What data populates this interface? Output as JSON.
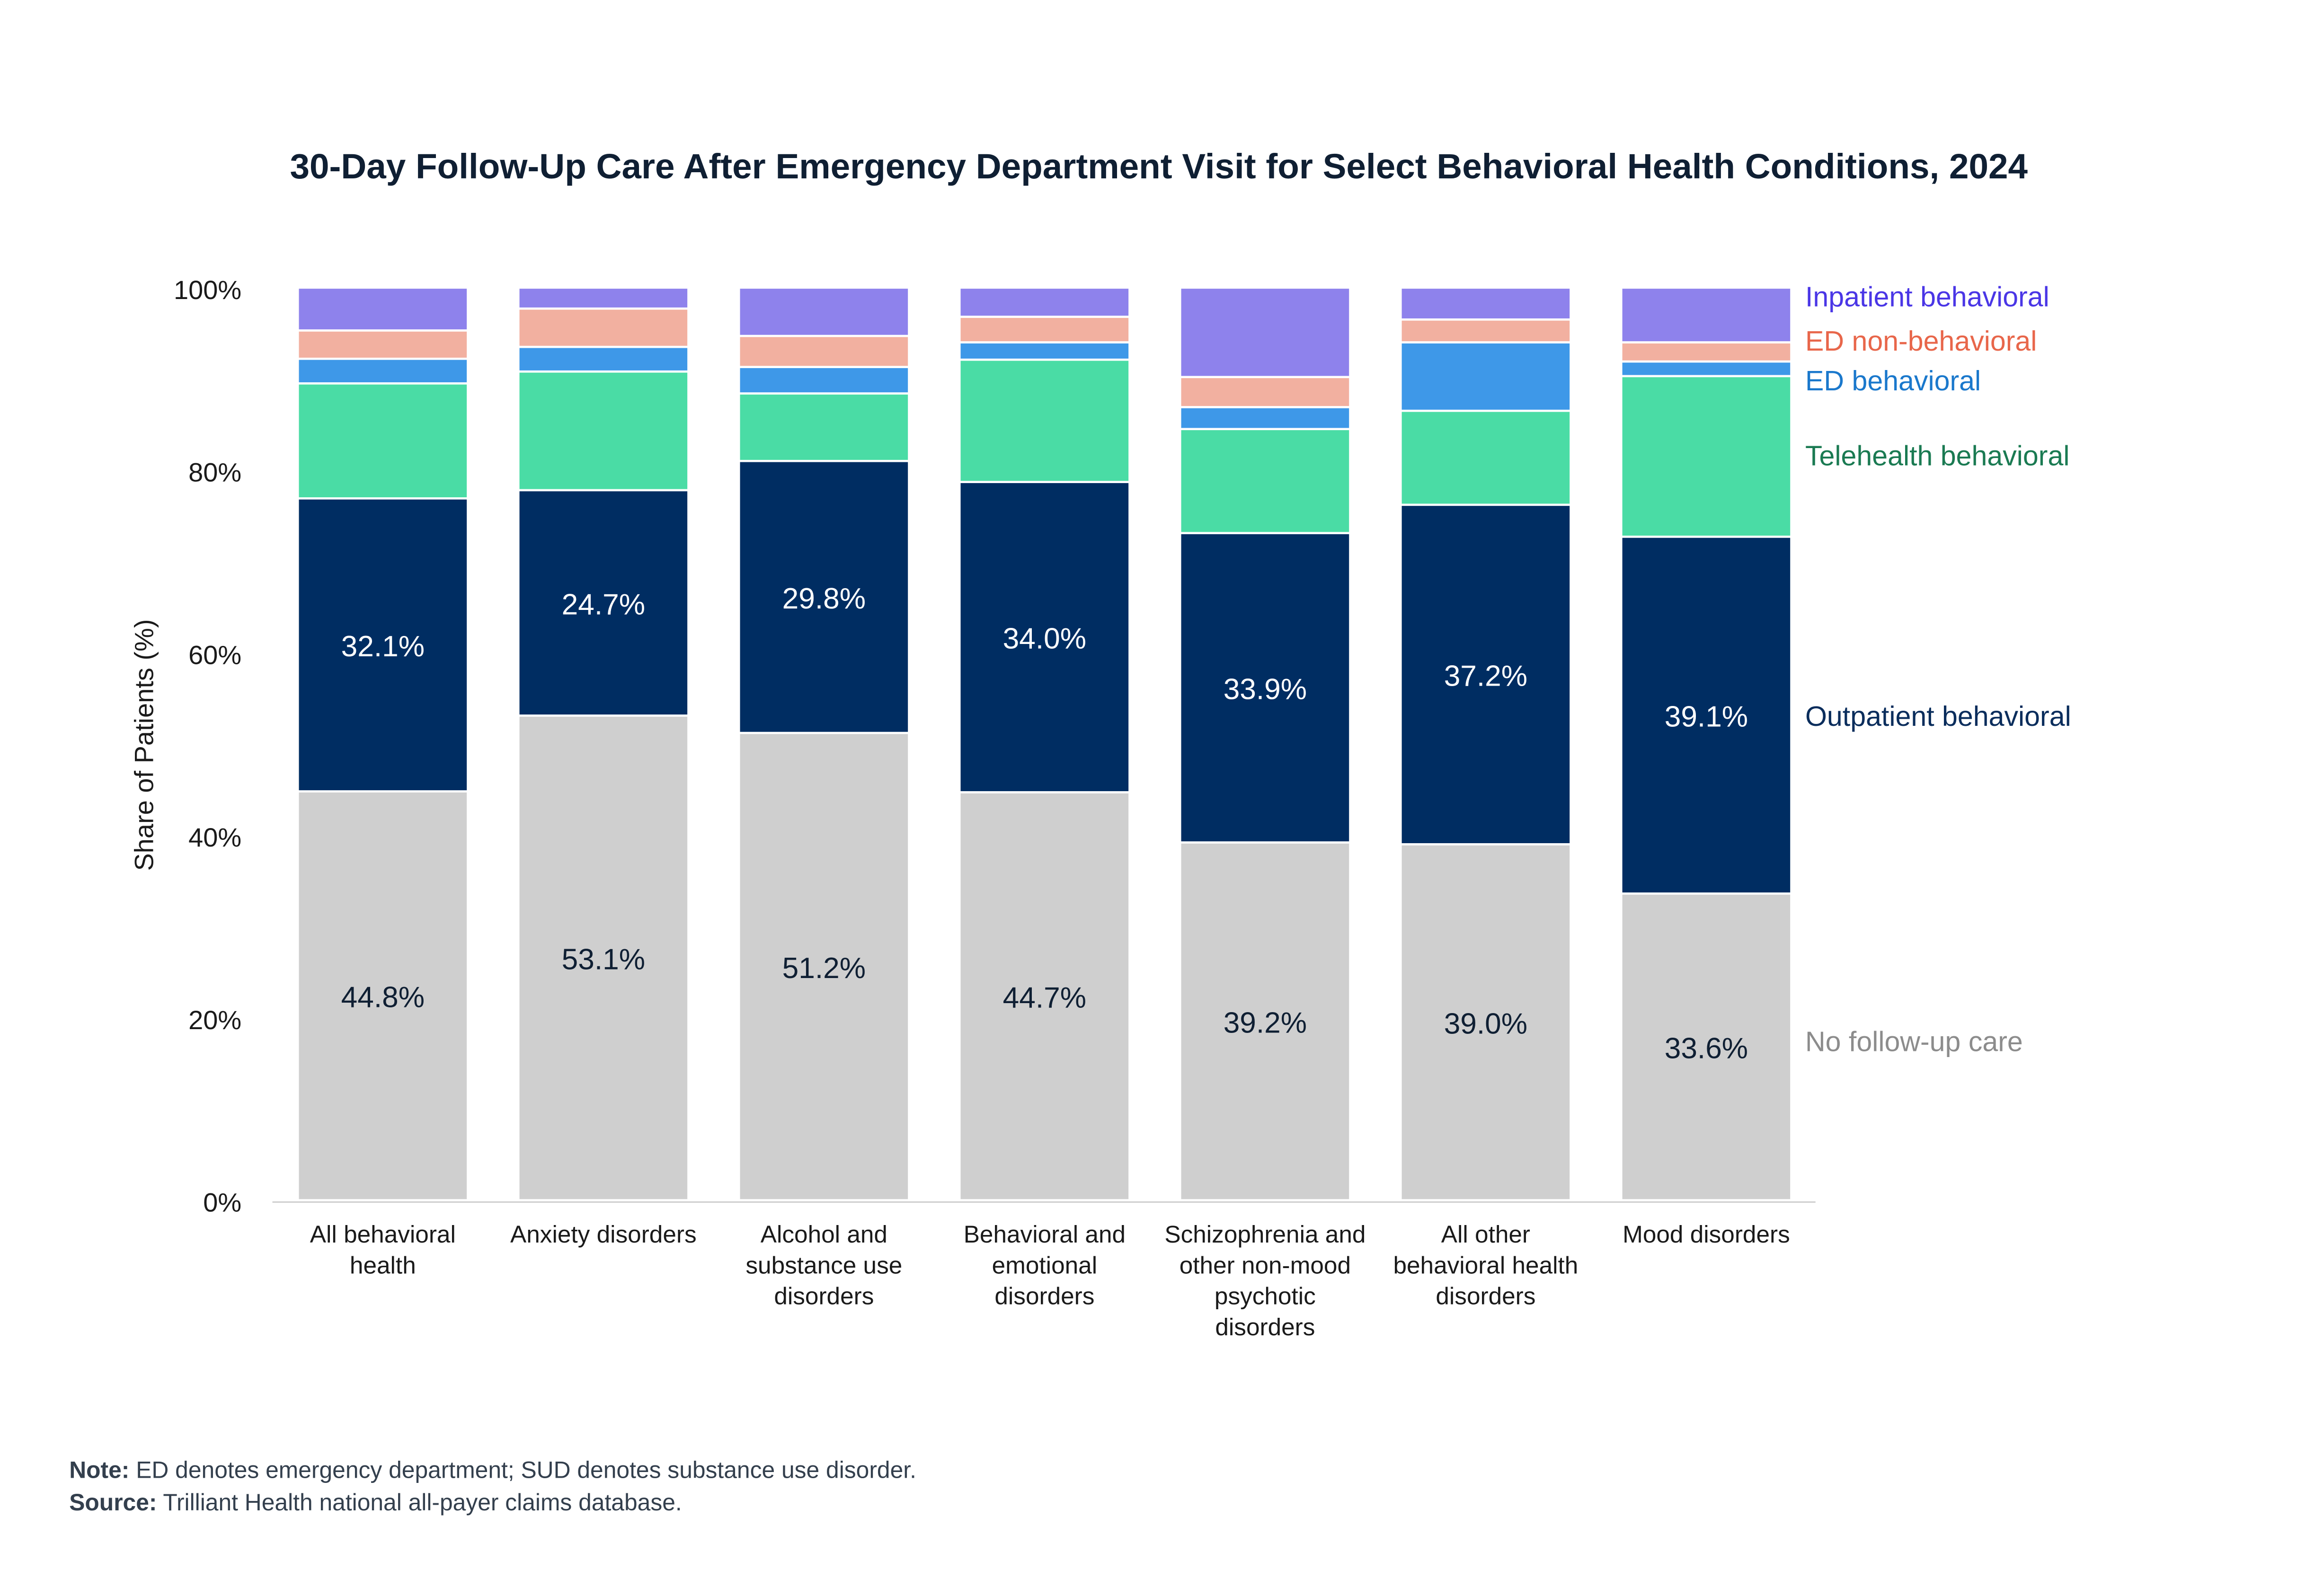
{
  "chart_data": {
    "type": "bar",
    "stacked": true,
    "title": "30-Day Follow-Up Care After Emergency Department Visit for Select Behavioral Health Conditions, 2024",
    "ylabel": "Share of Patients (%)",
    "xlabel": "",
    "ylim": [
      0,
      100
    ],
    "yticks": [
      "0%",
      "20%",
      "40%",
      "60%",
      "80%",
      "100%"
    ],
    "grid": false,
    "legend_placement": "right, labels aligned to last bar",
    "categories": [
      [
        "All behavioral",
        "health"
      ],
      [
        "Anxiety disorders"
      ],
      [
        "Alcohol and",
        "substance use",
        "disorders"
      ],
      [
        "Behavioral and",
        "emotional",
        "disorders"
      ],
      [
        "Schizophrenia and",
        "other non-mood",
        "psychotic",
        "disorders"
      ],
      [
        "All other",
        "behavioral health",
        "disorders"
      ],
      [
        "Mood disorders"
      ]
    ],
    "series": [
      {
        "name": "No follow-up care",
        "color": "#cfcfcf",
        "label_color": "#8c8c8c",
        "text_color": "#0f1f33",
        "labeled": true,
        "values": [
          44.8,
          53.1,
          51.2,
          44.7,
          39.2,
          39.0,
          33.6
        ]
      },
      {
        "name": "Outpatient behavioral",
        "color": "#002d62",
        "label_color": "#0a2d5c",
        "text_color": "#ffffff",
        "labeled": true,
        "values": [
          32.1,
          24.7,
          29.8,
          34.0,
          33.9,
          37.2,
          39.1
        ]
      },
      {
        "name": "Telehealth behavioral",
        "color": "#4adca5",
        "label_color": "#1a7a52",
        "labeled": false,
        "values": [
          12.6,
          13.0,
          7.4,
          13.4,
          11.4,
          10.3,
          17.6
        ]
      },
      {
        "name": "ED behavioral",
        "color": "#3e98e8",
        "label_color": "#1a78cc",
        "labeled": false,
        "values": [
          2.7,
          2.7,
          2.9,
          1.9,
          2.4,
          7.5,
          1.6
        ]
      },
      {
        "name": "ED non-behavioral",
        "color": "#f2b0a0",
        "label_color": "#e8664a",
        "labeled": false,
        "values": [
          3.1,
          4.2,
          3.4,
          2.8,
          3.3,
          2.5,
          2.1
        ]
      },
      {
        "name": "Inpatient behavioral",
        "color": "#8e82ec",
        "label_color": "#4a36e6",
        "labeled": false,
        "values": [
          4.7,
          2.3,
          5.3,
          3.2,
          9.8,
          3.5,
          6.0
        ]
      }
    ]
  },
  "footer": {
    "note_label": "Note:",
    "note_text": " ED denotes emergency department; SUD denotes substance use disorder.",
    "source_label": "Source:",
    "source_text": " Trilliant Health national all-payer claims database."
  }
}
